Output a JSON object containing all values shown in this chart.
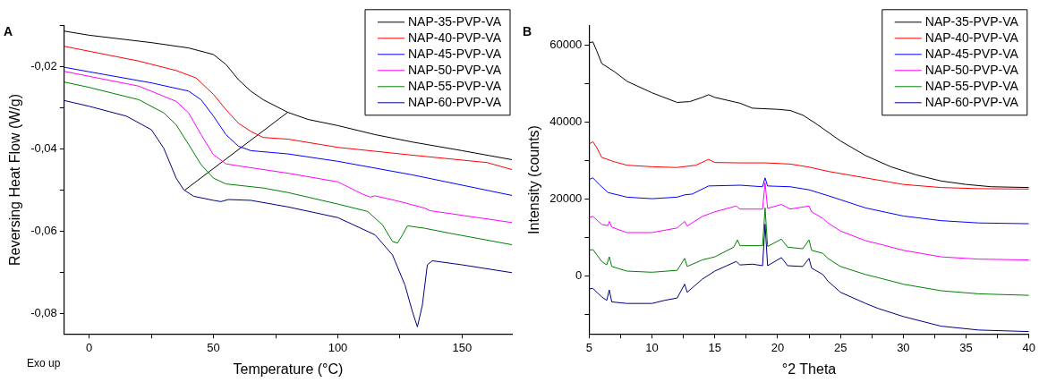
{
  "chart_data": [
    {
      "type": "line",
      "title": "A",
      "xlabel": "Temperature (°C)",
      "ylabel": "Reversing Heat Flow (W/g)",
      "annotations": [
        "Exo up"
      ],
      "legend": "top right",
      "xlim": [
        -10,
        170
      ],
      "ylim": [
        -0.085,
        -0.01
      ],
      "xticks": [
        0,
        {
          "value": 25,
          "label": null
        },
        50,
        {
          "value": 75,
          "label": null
        },
        100,
        {
          "value": 125,
          "label": null
        },
        150
      ],
      "yticks": [
        {
          "value": -0.08,
          "label": "-0,08"
        },
        {
          "value": -0.07,
          "label": null
        },
        {
          "value": -0.06,
          "label": "-0,06"
        },
        {
          "value": -0.05,
          "label": null
        },
        {
          "value": -0.04,
          "label": "-0,04"
        },
        {
          "value": -0.03,
          "label": null
        },
        {
          "value": -0.02,
          "label": "-0,02"
        },
        {
          "value": -0.01,
          "label": null
        }
      ],
      "series": [
        {
          "name": "NAP-35-PVP-VA",
          "color": "#000000",
          "x": [
            -10,
            0,
            25,
            40,
            50,
            55,
            60,
            65,
            70,
            80,
            88,
            100,
            115,
            130,
            150,
            170
          ],
          "values": [
            -0.0113,
            -0.0123,
            -0.0141,
            -0.0154,
            -0.017,
            -0.0194,
            -0.0231,
            -0.0259,
            -0.028,
            -0.0311,
            -0.0328,
            -0.0343,
            -0.0365,
            -0.0383,
            -0.0404,
            -0.0426
          ]
        },
        {
          "name": "NAP-40-PVP-VA",
          "color": "#ff0000",
          "x": [
            -10,
            0,
            20,
            35,
            43,
            50,
            55,
            60,
            65,
            70,
            80,
            100,
            130,
            160,
            170
          ],
          "values": [
            -0.015,
            -0.0162,
            -0.0186,
            -0.0209,
            -0.0227,
            -0.0267,
            -0.0304,
            -0.0337,
            -0.0357,
            -0.0372,
            -0.0376,
            -0.0396,
            -0.0415,
            -0.0433,
            -0.045
          ]
        },
        {
          "name": "NAP-45-PVP-VA",
          "color": "#0000ff",
          "x": [
            -10,
            0,
            25,
            40,
            45,
            50,
            55,
            60,
            65,
            80,
            100,
            130,
            170
          ],
          "values": [
            -0.0201,
            -0.0212,
            -0.0239,
            -0.0259,
            -0.028,
            -0.032,
            -0.0365,
            -0.0393,
            -0.0404,
            -0.0412,
            -0.043,
            -0.0463,
            -0.0513
          ]
        },
        {
          "name": "NAP-50-PVP-VA",
          "color": "#ff00ff",
          "x": [
            -10,
            0,
            20,
            35,
            40,
            45,
            50,
            55,
            60,
            80,
            100,
            110,
            113,
            115,
            125,
            135,
            137,
            170
          ],
          "values": [
            -0.0211,
            -0.0223,
            -0.0247,
            -0.0284,
            -0.0312,
            -0.0365,
            -0.0414,
            -0.0436,
            -0.0441,
            -0.0459,
            -0.048,
            -0.051,
            -0.0517,
            -0.0514,
            -0.0528,
            -0.0544,
            -0.055,
            -0.0579
          ]
        },
        {
          "name": "NAP-55-PVP-VA",
          "color": "#008000",
          "x": [
            -10,
            0,
            20,
            30,
            35,
            40,
            45,
            50,
            55,
            70,
            80,
            100,
            112,
            118,
            122,
            124,
            126,
            128,
            135,
            145,
            170
          ],
          "values": [
            -0.0237,
            -0.025,
            -0.028,
            -0.0312,
            -0.0341,
            -0.0389,
            -0.0438,
            -0.0471,
            -0.0485,
            -0.0495,
            -0.0506,
            -0.0534,
            -0.0552,
            -0.0585,
            -0.0625,
            -0.0629,
            -0.0609,
            -0.0587,
            -0.0593,
            -0.0605,
            -0.0633
          ]
        },
        {
          "name": "NAP-60-PVP-VA",
          "color": "#000080",
          "x": [
            -10,
            0,
            15,
            25,
            30,
            35,
            38,
            42,
            50,
            53,
            56,
            65,
            80,
            100,
            115,
            122,
            127,
            130,
            132,
            134,
            136,
            138,
            150,
            170
          ],
          "values": [
            -0.0282,
            -0.0296,
            -0.032,
            -0.0353,
            -0.0398,
            -0.0471,
            -0.0499,
            -0.0515,
            -0.0525,
            -0.0528,
            -0.0523,
            -0.0525,
            -0.0541,
            -0.0567,
            -0.0609,
            -0.0658,
            -0.0731,
            -0.0796,
            -0.0833,
            -0.078,
            -0.0682,
            -0.0672,
            -0.0682,
            -0.0701
          ]
        },
        {
          "color": "#000000",
          "x": [
            38.5,
            80
          ],
          "values": [
            -0.05,
            -0.031
          ]
        }
      ]
    },
    {
      "type": "line",
      "title": "B",
      "xlabel": "°2 Theta",
      "ylabel": "Intensity (counts)",
      "legend": "top right",
      "xlim": [
        5,
        40
      ],
      "ylim": [
        -15000,
        65000
      ],
      "xticks": [
        5,
        {
          "value": 7.5,
          "label": null
        },
        10,
        {
          "value": 12.5,
          "label": null
        },
        15,
        {
          "value": 17.5,
          "label": null
        },
        20,
        {
          "value": 22.5,
          "label": null
        },
        25,
        {
          "value": 27.5,
          "label": null
        },
        30,
        {
          "value": 32.5,
          "label": null
        },
        35,
        {
          "value": 37.5,
          "label": null
        },
        40
      ],
      "yticks": [
        {
          "value": -10000,
          "label": null
        },
        0,
        {
          "value": 10000,
          "label": null
        },
        20000,
        {
          "value": 30000,
          "label": null
        },
        40000,
        {
          "value": 50000,
          "label": null
        },
        60000
      ],
      "series": [
        {
          "name": "NAP-35-PVP-VA",
          "color": "#000000",
          "x": [
            5,
            5.3,
            5.6,
            6,
            7,
            8,
            10,
            12,
            13,
            14,
            14.5,
            15,
            17,
            18,
            20,
            21,
            22,
            23,
            25,
            27,
            29,
            31,
            33,
            35,
            37,
            40
          ],
          "values": [
            60600,
            60800,
            58500,
            55200,
            53100,
            50600,
            47600,
            45100,
            45300,
            46400,
            47100,
            46400,
            44900,
            43600,
            43300,
            43000,
            41800,
            39700,
            35100,
            31300,
            28400,
            26300,
            24700,
            23800,
            23200,
            23000
          ]
        },
        {
          "name": "NAP-40-PVP-VA",
          "color": "#ff0000",
          "x": [
            5,
            5.3,
            5.6,
            6,
            7,
            8,
            10,
            12,
            13.5,
            14.5,
            15,
            17,
            19,
            21,
            22.5,
            24,
            27,
            30,
            33,
            36,
            40
          ],
          "values": [
            34300,
            34900,
            33400,
            30800,
            29700,
            28800,
            28400,
            28200,
            28800,
            30300,
            29500,
            29400,
            29400,
            29100,
            28300,
            27200,
            25500,
            23800,
            23000,
            22700,
            22600
          ]
        },
        {
          "name": "NAP-45-PVP-VA",
          "color": "#0000ff",
          "x": [
            5,
            5.3,
            5.8,
            6.5,
            8,
            10,
            12,
            12.6,
            13.2,
            14.5,
            17,
            18.8,
            19,
            19.2,
            21,
            22.5,
            24,
            27,
            30,
            33,
            36,
            40
          ],
          "values": [
            25100,
            25500,
            23800,
            21700,
            20500,
            20100,
            20500,
            21100,
            21300,
            23400,
            23600,
            23200,
            25500,
            23400,
            23200,
            22400,
            20900,
            17700,
            15600,
            14400,
            13800,
            13600
          ]
        },
        {
          "name": "NAP-50-PVP-VA",
          "color": "#ff00ff",
          "x": [
            5,
            5.3,
            6,
            6.5,
            6.6,
            6.8,
            8,
            10,
            12,
            12.6,
            12.8,
            14,
            15,
            16.7,
            17,
            18.8,
            19,
            19.2,
            20.3,
            21,
            22.5,
            22.7,
            23.6,
            24,
            25,
            27,
            28,
            30,
            33,
            36,
            40
          ],
          "values": [
            15200,
            15500,
            13400,
            13100,
            14200,
            12700,
            11300,
            11300,
            12500,
            14200,
            13000,
            15500,
            16700,
            18200,
            17400,
            17400,
            24200,
            17600,
            18600,
            17400,
            18200,
            16700,
            15000,
            13800,
            11700,
            9200,
            8400,
            6700,
            5000,
            4400,
            4200
          ]
        },
        {
          "name": "NAP-55-PVP-VA",
          "color": "#008000",
          "x": [
            5,
            5.3,
            6,
            6.4,
            6.6,
            6.8,
            8,
            10,
            12,
            12.6,
            12.8,
            14,
            15,
            16.5,
            16.8,
            17,
            18.8,
            19,
            19.2,
            20.3,
            20.8,
            22,
            22.5,
            22.7,
            23.6,
            24,
            25,
            27,
            28,
            30,
            33,
            36,
            40
          ],
          "values": [
            6700,
            6900,
            3800,
            2900,
            5000,
            2500,
            1300,
            1000,
            1500,
            4600,
            2500,
            4200,
            5000,
            7500,
            9400,
            7900,
            7900,
            17700,
            7700,
            9600,
            7500,
            7100,
            9400,
            6700,
            5900,
            4600,
            2500,
            400,
            -400,
            -2100,
            -3800,
            -4600,
            -5000
          ]
        },
        {
          "name": "NAP-60-PVP-VA",
          "color": "#000080",
          "x": [
            5,
            5.3,
            6,
            6.4,
            6.6,
            6.8,
            8,
            10,
            11,
            12,
            12.6,
            12.8,
            14,
            15,
            16.7,
            17,
            18,
            18.8,
            19,
            19.2,
            20.3,
            20.8,
            22,
            22.5,
            22.7,
            23.6,
            24,
            25,
            27,
            28,
            30,
            33,
            36,
            40
          ],
          "values": [
            -3300,
            -3200,
            -5400,
            -6300,
            -3600,
            -6700,
            -7100,
            -7100,
            -6300,
            -5700,
            -2100,
            -4200,
            -800,
            1300,
            3800,
            2900,
            3100,
            2700,
            13500,
            2700,
            4800,
            2700,
            2500,
            4600,
            2100,
            400,
            -1300,
            -4200,
            -7100,
            -8400,
            -10500,
            -13000,
            -14000,
            -14400
          ]
        }
      ]
    }
  ]
}
